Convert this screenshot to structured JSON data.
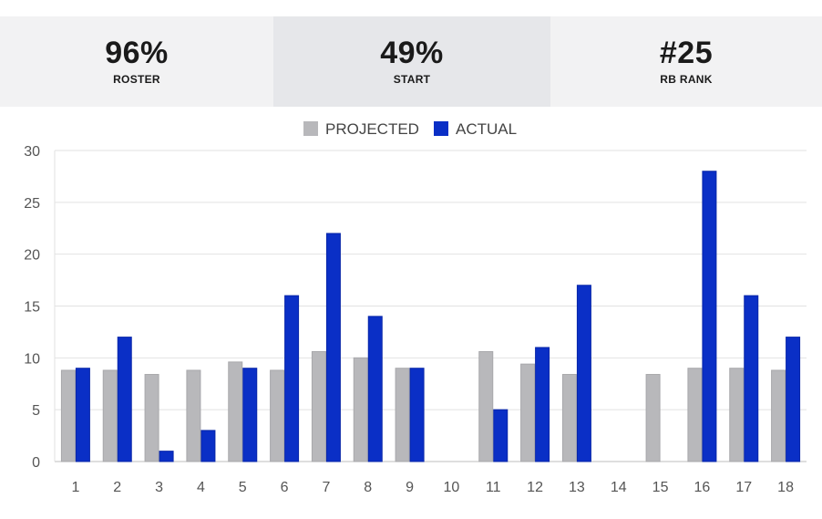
{
  "stats": [
    {
      "value": "96%",
      "label": "ROSTER",
      "bg": "#f2f2f3"
    },
    {
      "value": "49%",
      "label": "START",
      "bg": "#e6e7ea"
    },
    {
      "value": "#25",
      "label": "RB RANK",
      "bg": "#f2f2f3"
    }
  ],
  "chart_data": {
    "type": "bar",
    "categories": [
      "1",
      "2",
      "3",
      "4",
      "5",
      "6",
      "7",
      "8",
      "9",
      "10",
      "11",
      "12",
      "13",
      "14",
      "15",
      "16",
      "17",
      "18"
    ],
    "series": [
      {
        "name": "PROJECTED",
        "color": "#b8b8bb",
        "values": [
          8.8,
          8.8,
          8.4,
          8.8,
          9.6,
          8.8,
          10.6,
          10.0,
          9.0,
          null,
          10.6,
          9.4,
          8.4,
          null,
          8.4,
          9.0,
          9.0,
          8.8
        ]
      },
      {
        "name": "ACTUAL",
        "color": "#0a2fc6",
        "values": [
          9,
          12,
          1,
          3,
          9,
          16,
          22,
          14,
          9,
          null,
          5,
          11,
          17,
          null,
          null,
          28,
          16,
          12
        ]
      }
    ],
    "yticks": [
      0,
      5,
      10,
      15,
      20,
      25,
      30
    ],
    "ylim": [
      0,
      30
    ],
    "grid": true,
    "legend": "top-center"
  }
}
